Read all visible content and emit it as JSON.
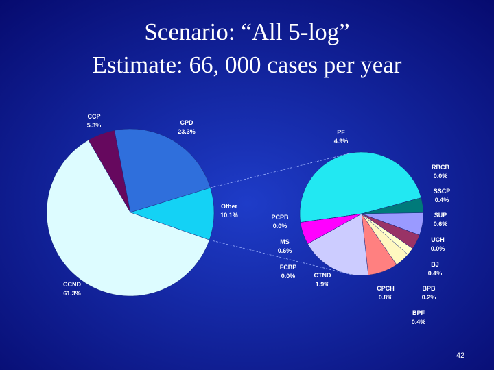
{
  "slide": {
    "title_lines": [
      "Scenario: “All 5-log”",
      "Estimate: 66, 000 cases per year"
    ],
    "page_number": "42"
  },
  "chart_data": [
    {
      "type": "pie",
      "categories": [
        "CPD",
        "Other",
        "CCND",
        "CCP"
      ],
      "values": [
        23.3,
        10.1,
        61.3,
        5.3
      ],
      "value_labels": [
        "23.3%",
        "10.1%",
        "61.3%",
        "5.3%"
      ],
      "colors": [
        "#2f6fdc",
        "#14d2f5",
        "#ddfcff",
        "#66085e"
      ]
    },
    {
      "type": "pie",
      "categories": [
        "PF",
        "RBCB",
        "SSCP",
        "SUP",
        "UCH",
        "BJ",
        "BPB",
        "BPF",
        "CPCH",
        "CTND",
        "FCBP",
        "MS",
        "PCPB"
      ],
      "values": [
        4.9,
        0.0,
        0.4,
        0.6,
        0.0,
        0.4,
        0.2,
        0.4,
        0.8,
        1.9,
        0.0,
        0.6,
        0.0
      ],
      "value_labels": [
        "4.9%",
        "0.0%",
        "0.4%",
        "0.6%",
        "0.0%",
        "0.4%",
        "0.2%",
        "0.4%",
        "0.8%",
        "1.9%",
        "0.0%",
        "0.6%",
        "0.0%"
      ],
      "colors": [
        "#22e8f2",
        "#7a0000",
        "#007a7a",
        "#9a9aff",
        "#800040",
        "#993366",
        "#ffffcc",
        "#fff8c0",
        "#ff8080",
        "#ccccff",
        "#ff00ff",
        "#ff00ff",
        "#ff00ff"
      ]
    }
  ]
}
